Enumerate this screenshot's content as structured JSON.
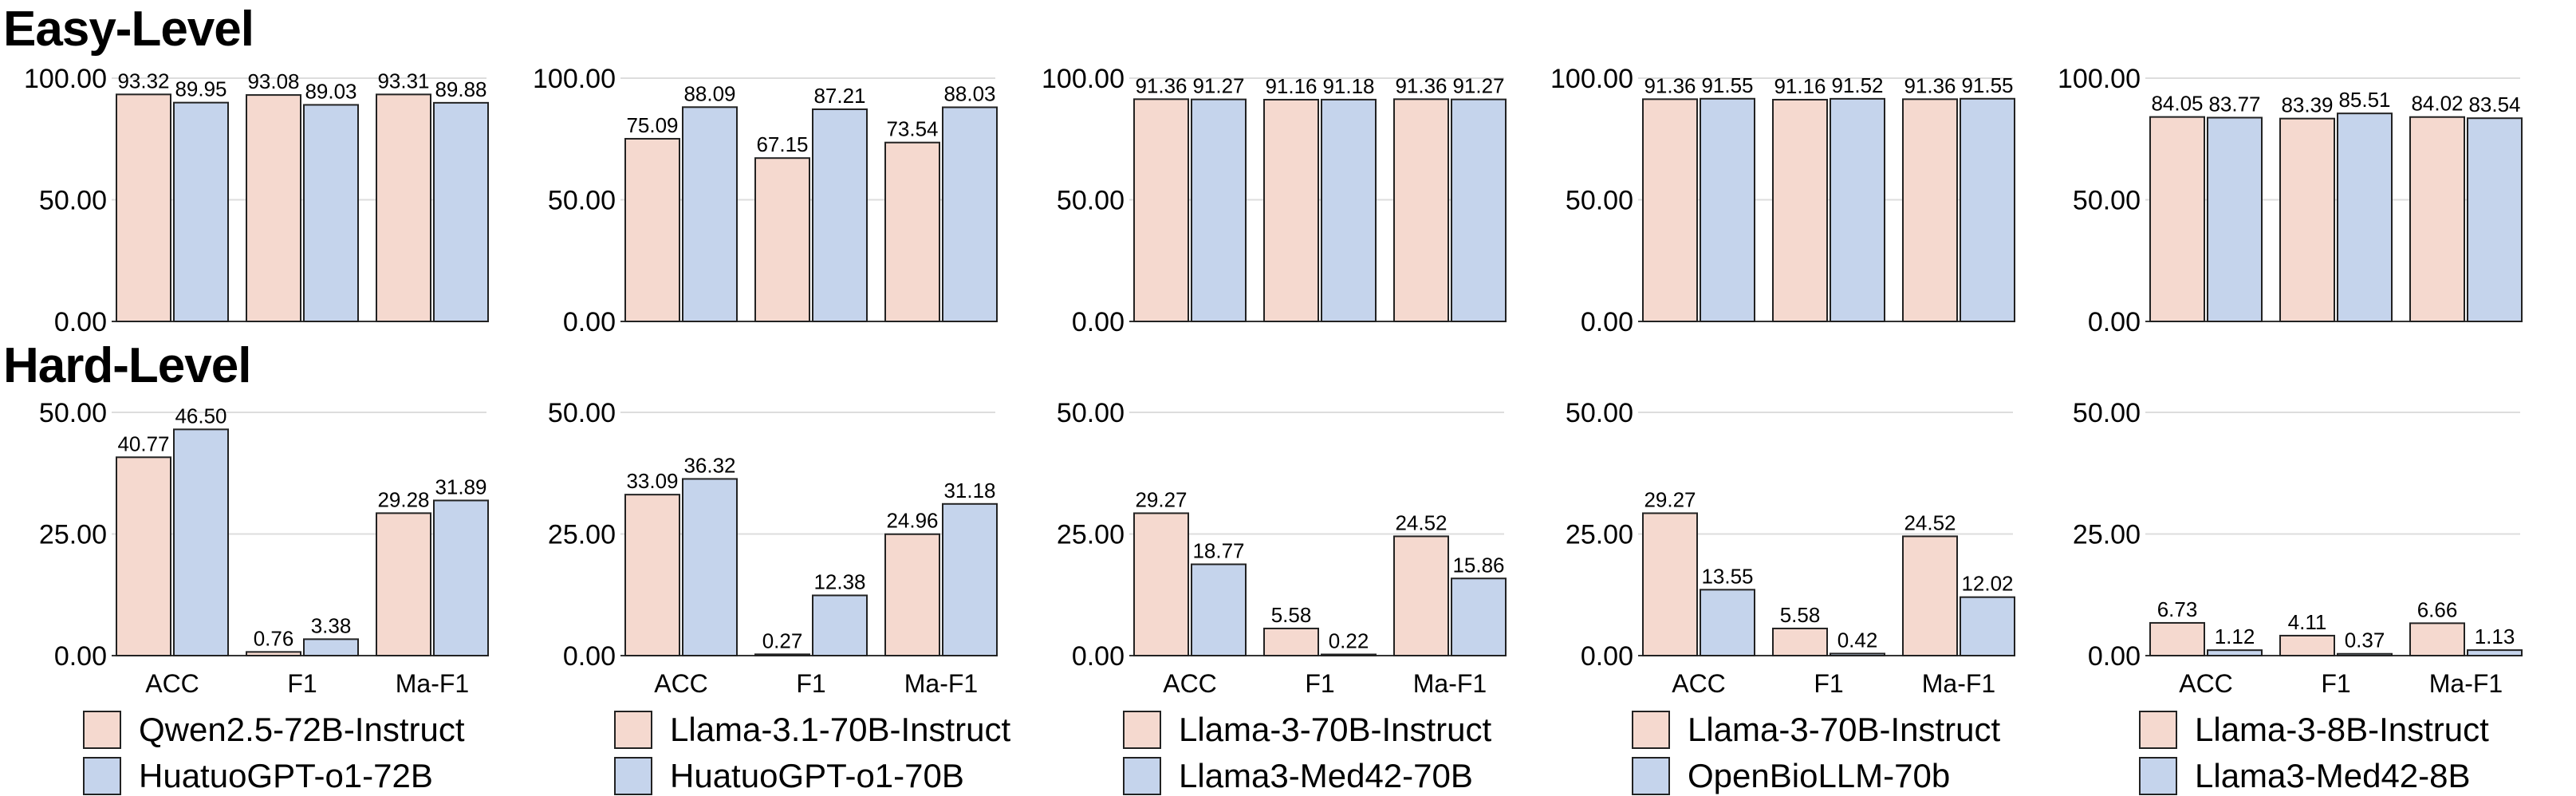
{
  "levels": [
    {
      "title": "Easy-Level",
      "yticks": [
        "0.00",
        "50.00",
        "100.00"
      ],
      "ylim": [
        0,
        100
      ]
    },
    {
      "title": "Hard-Level",
      "yticks": [
        "0.00",
        "25.00",
        "50.00"
      ],
      "ylim": [
        0,
        50
      ]
    }
  ],
  "colors": {
    "base": "#f5d9cf",
    "med": "#c5d4ec",
    "edge": "#222222",
    "grid": "#dddddd"
  },
  "chart_data": [
    {
      "type": "bar",
      "level": "Easy-Level",
      "categories": [
        "ACC",
        "F1",
        "Ma-F1"
      ],
      "ylim": [
        0,
        100
      ],
      "series": [
        {
          "name": "Qwen2.5-72B-Instruct",
          "values": [
            93.32,
            93.08,
            93.31
          ],
          "labels": [
            "93.32",
            "93.08",
            "93.31"
          ]
        },
        {
          "name": "HuatuoGPT-o1-72B",
          "values": [
            89.95,
            89.03,
            89.88
          ],
          "labels": [
            "89.95",
            "89.03",
            "89.88"
          ]
        }
      ]
    },
    {
      "type": "bar",
      "level": "Easy-Level",
      "categories": [
        "ACC",
        "F1",
        "Ma-F1"
      ],
      "ylim": [
        0,
        100
      ],
      "series": [
        {
          "name": "Llama-3.1-70B-Instruct",
          "values": [
            75.09,
            67.15,
            73.54
          ],
          "labels": [
            "75.09",
            "67.15",
            "73.54"
          ]
        },
        {
          "name": "HuatuoGPT-o1-70B",
          "values": [
            88.09,
            87.21,
            88.03
          ],
          "labels": [
            "88.09",
            "87.21",
            "88.03"
          ]
        }
      ]
    },
    {
      "type": "bar",
      "level": "Easy-Level",
      "categories": [
        "ACC",
        "F1",
        "Ma-F1"
      ],
      "ylim": [
        0,
        100
      ],
      "series": [
        {
          "name": "Llama-3-70B-Instruct",
          "values": [
            91.36,
            91.16,
            91.36
          ],
          "labels": [
            "91.36",
            "91.16",
            "91.36"
          ]
        },
        {
          "name": "Llama3-Med42-70B",
          "values": [
            91.27,
            91.18,
            91.27
          ],
          "labels": [
            "91.27",
            "91.18",
            "91.27"
          ]
        }
      ]
    },
    {
      "type": "bar",
      "level": "Easy-Level",
      "categories": [
        "ACC",
        "F1",
        "Ma-F1"
      ],
      "ylim": [
        0,
        100
      ],
      "series": [
        {
          "name": "Llama-3-70B-Instruct",
          "values": [
            91.36,
            91.16,
            91.36
          ],
          "labels": [
            "91.36",
            "91.16",
            "91.36"
          ]
        },
        {
          "name": "OpenBioLLM-70b",
          "values": [
            91.55,
            91.52,
            91.55
          ],
          "labels": [
            "91.55",
            "91.52",
            "91.55"
          ]
        }
      ]
    },
    {
      "type": "bar",
      "level": "Easy-Level",
      "categories": [
        "ACC",
        "F1",
        "Ma-F1"
      ],
      "ylim": [
        0,
        100
      ],
      "series": [
        {
          "name": "Llama-3-8B-Instruct",
          "values": [
            84.05,
            83.39,
            84.02
          ],
          "labels": [
            "84.05",
            "83.39",
            "84.02"
          ]
        },
        {
          "name": "Llama3-Med42-8B",
          "values": [
            83.77,
            85.51,
            83.54
          ],
          "labels": [
            "83.77",
            "85.51",
            "83.54"
          ]
        }
      ]
    },
    {
      "type": "bar",
      "level": "Hard-Level",
      "categories": [
        "ACC",
        "F1",
        "Ma-F1"
      ],
      "ylim": [
        0,
        50
      ],
      "series": [
        {
          "name": "Qwen2.5-72B-Instruct",
          "values": [
            40.77,
            0.76,
            29.28
          ],
          "labels": [
            "40.77",
            "0.76",
            "29.28"
          ]
        },
        {
          "name": "HuatuoGPT-o1-72B",
          "values": [
            46.5,
            3.38,
            31.89
          ],
          "labels": [
            "46.50",
            "3.38",
            "31.89"
          ]
        }
      ]
    },
    {
      "type": "bar",
      "level": "Hard-Level",
      "categories": [
        "ACC",
        "F1",
        "Ma-F1"
      ],
      "ylim": [
        0,
        50
      ],
      "series": [
        {
          "name": "Llama-3.1-70B-Instruct",
          "values": [
            33.09,
            0.27,
            24.96
          ],
          "labels": [
            "33.09",
            "0.27",
            "24.96"
          ]
        },
        {
          "name": "HuatuoGPT-o1-70B",
          "values": [
            36.32,
            12.38,
            31.18
          ],
          "labels": [
            "36.32",
            "12.38",
            "31.18"
          ]
        }
      ]
    },
    {
      "type": "bar",
      "level": "Hard-Level",
      "categories": [
        "ACC",
        "F1",
        "Ma-F1"
      ],
      "ylim": [
        0,
        50
      ],
      "series": [
        {
          "name": "Llama-3-70B-Instruct",
          "values": [
            29.27,
            5.58,
            24.52
          ],
          "labels": [
            "29.27",
            "5.58",
            "24.52"
          ]
        },
        {
          "name": "Llama3-Med42-70B",
          "values": [
            18.77,
            0.22,
            15.86
          ],
          "labels": [
            "18.77",
            "0.22",
            "15.86"
          ]
        }
      ]
    },
    {
      "type": "bar",
      "level": "Hard-Level",
      "categories": [
        "ACC",
        "F1",
        "Ma-F1"
      ],
      "ylim": [
        0,
        50
      ],
      "series": [
        {
          "name": "Llama-3-70B-Instruct",
          "values": [
            29.27,
            5.58,
            24.52
          ],
          "labels": [
            "29.27",
            "5.58",
            "24.52"
          ]
        },
        {
          "name": "OpenBioLLM-70b",
          "values": [
            13.55,
            0.42,
            12.02
          ],
          "labels": [
            "13.55",
            "0.42",
            "12.02"
          ]
        }
      ]
    },
    {
      "type": "bar",
      "level": "Hard-Level",
      "categories": [
        "ACC",
        "F1",
        "Ma-F1"
      ],
      "ylim": [
        0,
        50
      ],
      "series": [
        {
          "name": "Llama-3-8B-Instruct",
          "values": [
            6.73,
            4.11,
            6.66
          ],
          "labels": [
            "6.73",
            "4.11",
            "6.66"
          ]
        },
        {
          "name": "Llama3-Med42-8B",
          "values": [
            1.12,
            0.37,
            1.13
          ],
          "labels": [
            "1.12",
            "0.37",
            "1.13"
          ]
        }
      ]
    }
  ],
  "legend": [
    {
      "base": "Qwen2.5-72B-Instruct",
      "med": "HuatuoGPT-o1-72B"
    },
    {
      "base": "Llama-3.1-70B-Instruct",
      "med": "HuatuoGPT-o1-70B"
    },
    {
      "base": "Llama-3-70B-Instruct",
      "med": "Llama3-Med42-70B"
    },
    {
      "base": "Llama-3-70B-Instruct",
      "med": "OpenBioLLM-70b"
    },
    {
      "base": "Llama-3-8B-Instruct",
      "med": "Llama3-Med42-8B"
    }
  ]
}
